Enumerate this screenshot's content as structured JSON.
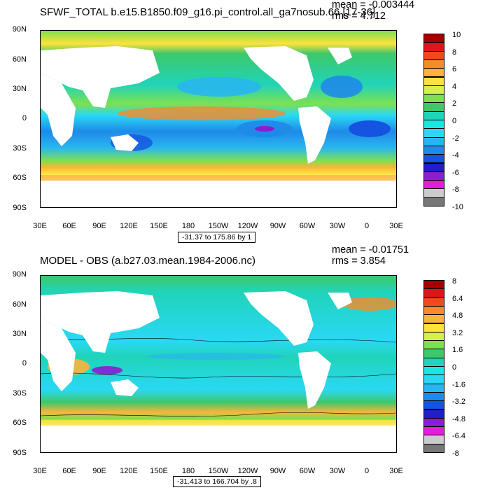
{
  "panels": [
    {
      "title": "SFWF_TOTAL b.e15.B1850.f09_g16.pi_control.all_ga7nosub.66 [17-36]",
      "mean_label": "mean = -0.003444",
      "rms_label": "rms = 4.712",
      "contour_info": "-31.37 to 175.86 by 1",
      "lat_labels": [
        "90N",
        "60N",
        "30N",
        "0",
        "30S",
        "60S",
        "90S"
      ],
      "lon_labels": [
        "30E",
        "60E",
        "90E",
        "120E",
        "150E",
        "180",
        "150W",
        "120W",
        "90W",
        "60W",
        "30W",
        "0",
        "30E"
      ],
      "colorbar_labels": [
        "10",
        "8",
        "6",
        "4",
        "2",
        "0",
        "-2",
        "-4",
        "-6",
        "-8",
        "-10"
      ],
      "colorbar_colors": [
        "#a50000",
        "#e0141c",
        "#f04a1c",
        "#f78a2a",
        "#fbb43a",
        "#fde23c",
        "#d8f04a",
        "#7de050",
        "#3ec86a",
        "#20d4b8",
        "#19e8e0",
        "#2ad8f5",
        "#28b6f0",
        "#1f8ae8",
        "#1554e0",
        "#1d1fc8",
        "#8a1ed2",
        "#e21edc",
        "#cccccc",
        "#777777"
      ]
    },
    {
      "title": "MODEL - OBS (a.b27.03.mean.1984-2006.nc)",
      "mean_label": "mean = -0.01751",
      "rms_label": "rms = 3.854",
      "contour_info": "-31.413 to 166.704 by .8",
      "lat_labels": [
        "90N",
        "60N",
        "30N",
        "0",
        "30S",
        "60S",
        "90S"
      ],
      "lon_labels": [
        "30E",
        "60E",
        "90E",
        "120E",
        "150E",
        "180",
        "150W",
        "120W",
        "90W",
        "60W",
        "30W",
        "0",
        "30E"
      ],
      "colorbar_labels": [
        "8",
        "6.4",
        "4.8",
        "3.2",
        "1.6",
        "0",
        "-1.6",
        "-3.2",
        "-4.8",
        "-6.4",
        "-8"
      ],
      "colorbar_colors": [
        "#a50000",
        "#e0141c",
        "#f04a1c",
        "#f78a2a",
        "#fbb43a",
        "#fde23c",
        "#d8f04a",
        "#7de050",
        "#3ec86a",
        "#20d4b8",
        "#19e8e0",
        "#2ad8f5",
        "#28b6f0",
        "#1f8ae8",
        "#1554e0",
        "#1d1fc8",
        "#8a1ed2",
        "#e21edc",
        "#cccccc",
        "#777777"
      ]
    }
  ]
}
